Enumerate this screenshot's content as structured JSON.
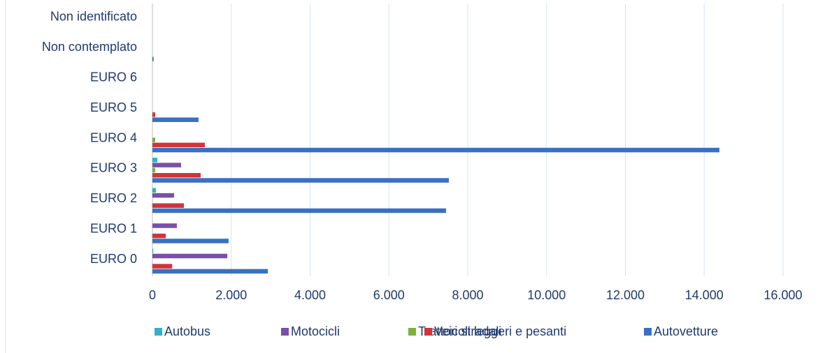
{
  "chart_data": {
    "type": "hbar",
    "categories": [
      "EURO 0",
      "EURO 1",
      "EURO 2",
      "EURO 3",
      "EURO 4",
      "EURO 5",
      "EURO 6",
      "Non contemplato",
      "Non identificato"
    ],
    "series": [
      {
        "name": "Autobus",
        "color": "#2fb1c9",
        "values": [
          20,
          0,
          90,
          125,
          0,
          0,
          0,
          0,
          0
        ]
      },
      {
        "name": "Motocicli",
        "color": "#7a4fa8",
        "values": [
          1900,
          620,
          550,
          727,
          0,
          0,
          0,
          0,
          0
        ]
      },
      {
        "name": "Trattori stradali",
        "color": "#7db03c",
        "values": [
          0,
          0,
          0,
          70,
          70,
          0,
          0,
          0,
          0
        ]
      },
      {
        "name": "Veicoli leggeri e pesanti",
        "color": "#d13438",
        "values": [
          500,
          337,
          798,
          1224,
          1330,
          70,
          0,
          0,
          0
        ]
      },
      {
        "name": "Autovetture",
        "color": "#3a70c2",
        "values": [
          2930,
          1933,
          7450,
          7521,
          14386,
          1170,
          0,
          30,
          0
        ]
      }
    ],
    "xlim": [
      0,
      16000
    ],
    "xticks": [
      0,
      {
        "value": 2000,
        "label": "2.000"
      },
      {
        "value": 4000,
        "label": "4.000"
      },
      {
        "value": 6000,
        "label": "6.000"
      },
      {
        "value": 8000,
        "label": "8.000"
      },
      {
        "value": 10000,
        "label": "10.000"
      },
      {
        "value": 12000,
        "label": "12.000"
      },
      {
        "value": 14000,
        "label": "14.000"
      },
      {
        "value": 16000,
        "label": "16.000"
      }
    ],
    "grid": true,
    "legend": "bottom"
  }
}
